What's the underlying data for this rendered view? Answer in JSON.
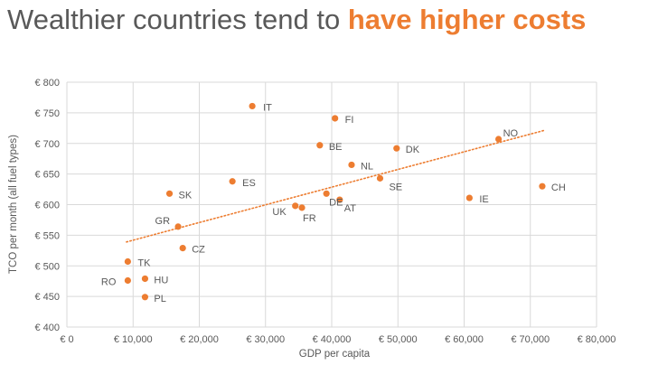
{
  "header": {
    "title_plain": "Wealthier countries tend to",
    "title_highlight": "have higher costs"
  },
  "colors": {
    "accent": "#ED7D31",
    "text": "#595959",
    "grid": "#D9D9D9"
  },
  "chart_data": {
    "type": "scatter",
    "xlabel": "GDP per capita",
    "ylabel": "TCO per month (all fuel types)",
    "xlim": [
      0,
      80000
    ],
    "ylim": [
      400,
      800
    ],
    "xticks": [
      0,
      10000,
      20000,
      30000,
      40000,
      50000,
      60000,
      70000,
      80000
    ],
    "xtick_labels": [
      "€ 0",
      "€ 10,000",
      "€ 20,000",
      "€ 30,000",
      "€ 40,000",
      "€ 50,000",
      "€ 60,000",
      "€ 70,000",
      "€ 80,000"
    ],
    "yticks": [
      400,
      450,
      500,
      550,
      600,
      650,
      700,
      750,
      800
    ],
    "ytick_labels": [
      "€ 400",
      "€ 450",
      "€ 500",
      "€ 550",
      "€ 600",
      "€ 650",
      "€ 700",
      "€ 750",
      "€ 800"
    ],
    "grid": true,
    "trendline": {
      "style": "dotted",
      "x": [
        9000,
        72000
      ],
      "y": [
        539,
        721
      ]
    },
    "points": [
      {
        "label": "IT",
        "x": 28000,
        "y": 761
      },
      {
        "label": "FI",
        "x": 40500,
        "y": 741
      },
      {
        "label": "NO",
        "x": 65200,
        "y": 707
      },
      {
        "label": "BE",
        "x": 38200,
        "y": 697
      },
      {
        "label": "DK",
        "x": 49800,
        "y": 692
      },
      {
        "label": "NL",
        "x": 43000,
        "y": 665
      },
      {
        "label": "SE",
        "x": 47300,
        "y": 643
      },
      {
        "label": "ES",
        "x": 25000,
        "y": 638
      },
      {
        "label": "CH",
        "x": 71800,
        "y": 630
      },
      {
        "label": "SK",
        "x": 15500,
        "y": 618
      },
      {
        "label": "DE",
        "x": 39200,
        "y": 618
      },
      {
        "label": "IE",
        "x": 60800,
        "y": 611
      },
      {
        "label": "AT",
        "x": 41200,
        "y": 608
      },
      {
        "label": "UK",
        "x": 34500,
        "y": 598
      },
      {
        "label": "FR",
        "x": 35500,
        "y": 595
      },
      {
        "label": "GR",
        "x": 16800,
        "y": 564
      },
      {
        "label": "CZ",
        "x": 17500,
        "y": 529
      },
      {
        "label": "TK",
        "x": 9200,
        "y": 507
      },
      {
        "label": "HU",
        "x": 11800,
        "y": 479
      },
      {
        "label": "RO",
        "x": 9200,
        "y": 476
      },
      {
        "label": "PL",
        "x": 11800,
        "y": 449
      }
    ]
  }
}
